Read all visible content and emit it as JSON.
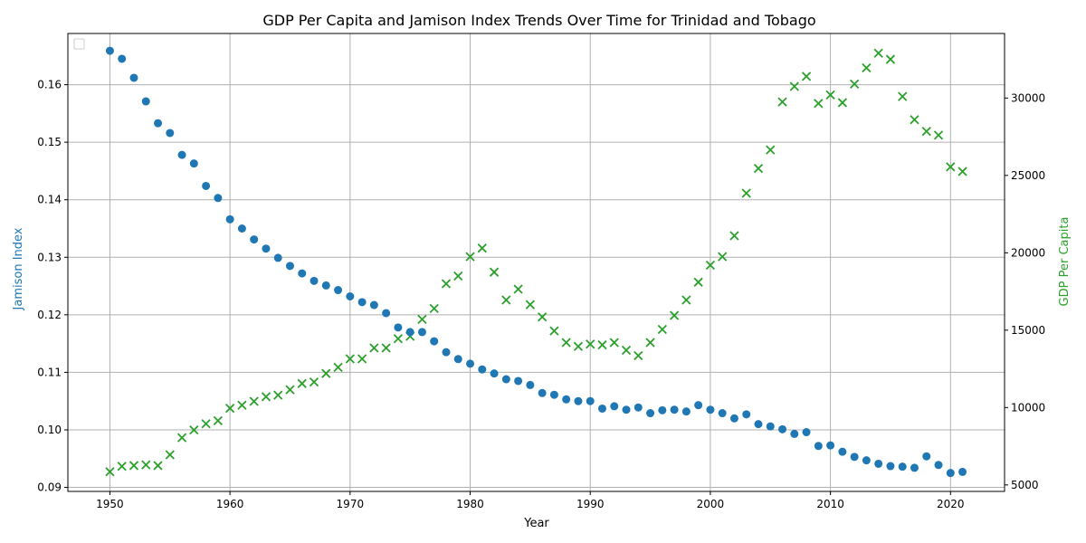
{
  "chart_data": {
    "type": "scatter",
    "title": "GDP Per Capita and Jamison Index Trends Over Time for Trinidad and Tobago",
    "xlabel": "Year",
    "ylabel_left": "Jamison Index",
    "ylabel_right": "GDP Per Capita",
    "xlim": [
      1946.5,
      2024.5
    ],
    "ylim_left": [
      0.0893,
      0.1689
    ],
    "ylim_right": [
      4580,
      34170
    ],
    "x_ticks": [
      1950,
      1960,
      1970,
      1980,
      1990,
      2000,
      2010,
      2020
    ],
    "y_left_ticks": [
      0.09,
      0.1,
      0.11,
      0.12,
      0.13,
      0.14,
      0.15,
      0.16
    ],
    "y_right_ticks": [
      5000,
      10000,
      15000,
      20000,
      25000,
      30000
    ],
    "grid": true,
    "legend": "top-left",
    "colors": {
      "jamison": "#1f77b4",
      "gdp": "#2ca02c"
    },
    "x": [
      1950,
      1951,
      1952,
      1953,
      1954,
      1955,
      1956,
      1957,
      1958,
      1959,
      1960,
      1961,
      1962,
      1963,
      1964,
      1965,
      1966,
      1967,
      1968,
      1969,
      1970,
      1971,
      1972,
      1973,
      1974,
      1975,
      1976,
      1977,
      1978,
      1979,
      1980,
      1981,
      1982,
      1983,
      1984,
      1985,
      1986,
      1987,
      1988,
      1989,
      1990,
      1991,
      1992,
      1993,
      1994,
      1995,
      1996,
      1997,
      1998,
      1999,
      2000,
      2001,
      2002,
      2003,
      2004,
      2005,
      2006,
      2007,
      2008,
      2009,
      2010,
      2011,
      2012,
      2013,
      2014,
      2015,
      2016,
      2017,
      2018,
      2019,
      2020,
      2021
    ],
    "series": [
      {
        "key": "jamison",
        "axis": "left",
        "marker": "circle",
        "values": [
          0.1659,
          0.1645,
          0.1612,
          0.1571,
          0.1533,
          0.1516,
          0.1478,
          0.1463,
          0.1424,
          0.1403,
          0.1366,
          0.135,
          0.1331,
          0.1315,
          0.1299,
          0.1285,
          0.1272,
          0.1259,
          0.1251,
          0.1243,
          0.1232,
          0.1222,
          0.1217,
          0.1203,
          0.1178,
          0.117,
          0.117,
          0.1154,
          0.1135,
          0.1123,
          0.1115,
          0.1105,
          0.1098,
          0.1088,
          0.1085,
          0.1078,
          0.1064,
          0.1061,
          0.1053,
          0.105,
          0.105,
          0.1037,
          0.1041,
          0.1035,
          0.1039,
          0.1029,
          0.1034,
          0.1035,
          0.1032,
          0.1043,
          0.1035,
          0.1029,
          0.102,
          0.1027,
          0.101,
          0.1006,
          0.1001,
          0.0993,
          0.0996,
          0.0972,
          0.0973,
          0.0962,
          0.0953,
          0.0947,
          0.0941,
          0.0937,
          0.0936,
          0.0934,
          0.0954,
          0.0939,
          0.0925,
          0.0927
        ]
      },
      {
        "key": "gdp",
        "axis": "right",
        "marker": "x",
        "values": [
          5850,
          6200,
          6250,
          6300,
          6250,
          6950,
          8050,
          8550,
          8950,
          9150,
          9950,
          10150,
          10400,
          10700,
          10800,
          11150,
          11550,
          11650,
          12200,
          12600,
          13150,
          13150,
          13850,
          13850,
          14450,
          14600,
          15700,
          16400,
          18000,
          18500,
          19750,
          20300,
          18750,
          16950,
          17650,
          16650,
          15850,
          14950,
          14200,
          13950,
          14100,
          14050,
          14200,
          13700,
          13350,
          14200,
          15050,
          15950,
          16950,
          18100,
          19200,
          19750,
          21100,
          23850,
          25450,
          26650,
          29750,
          30750,
          31400,
          29650,
          30200,
          29700,
          30900,
          31950,
          32900,
          32500,
          30100,
          28600,
          27850,
          27600,
          25550,
          25250
        ]
      }
    ]
  }
}
